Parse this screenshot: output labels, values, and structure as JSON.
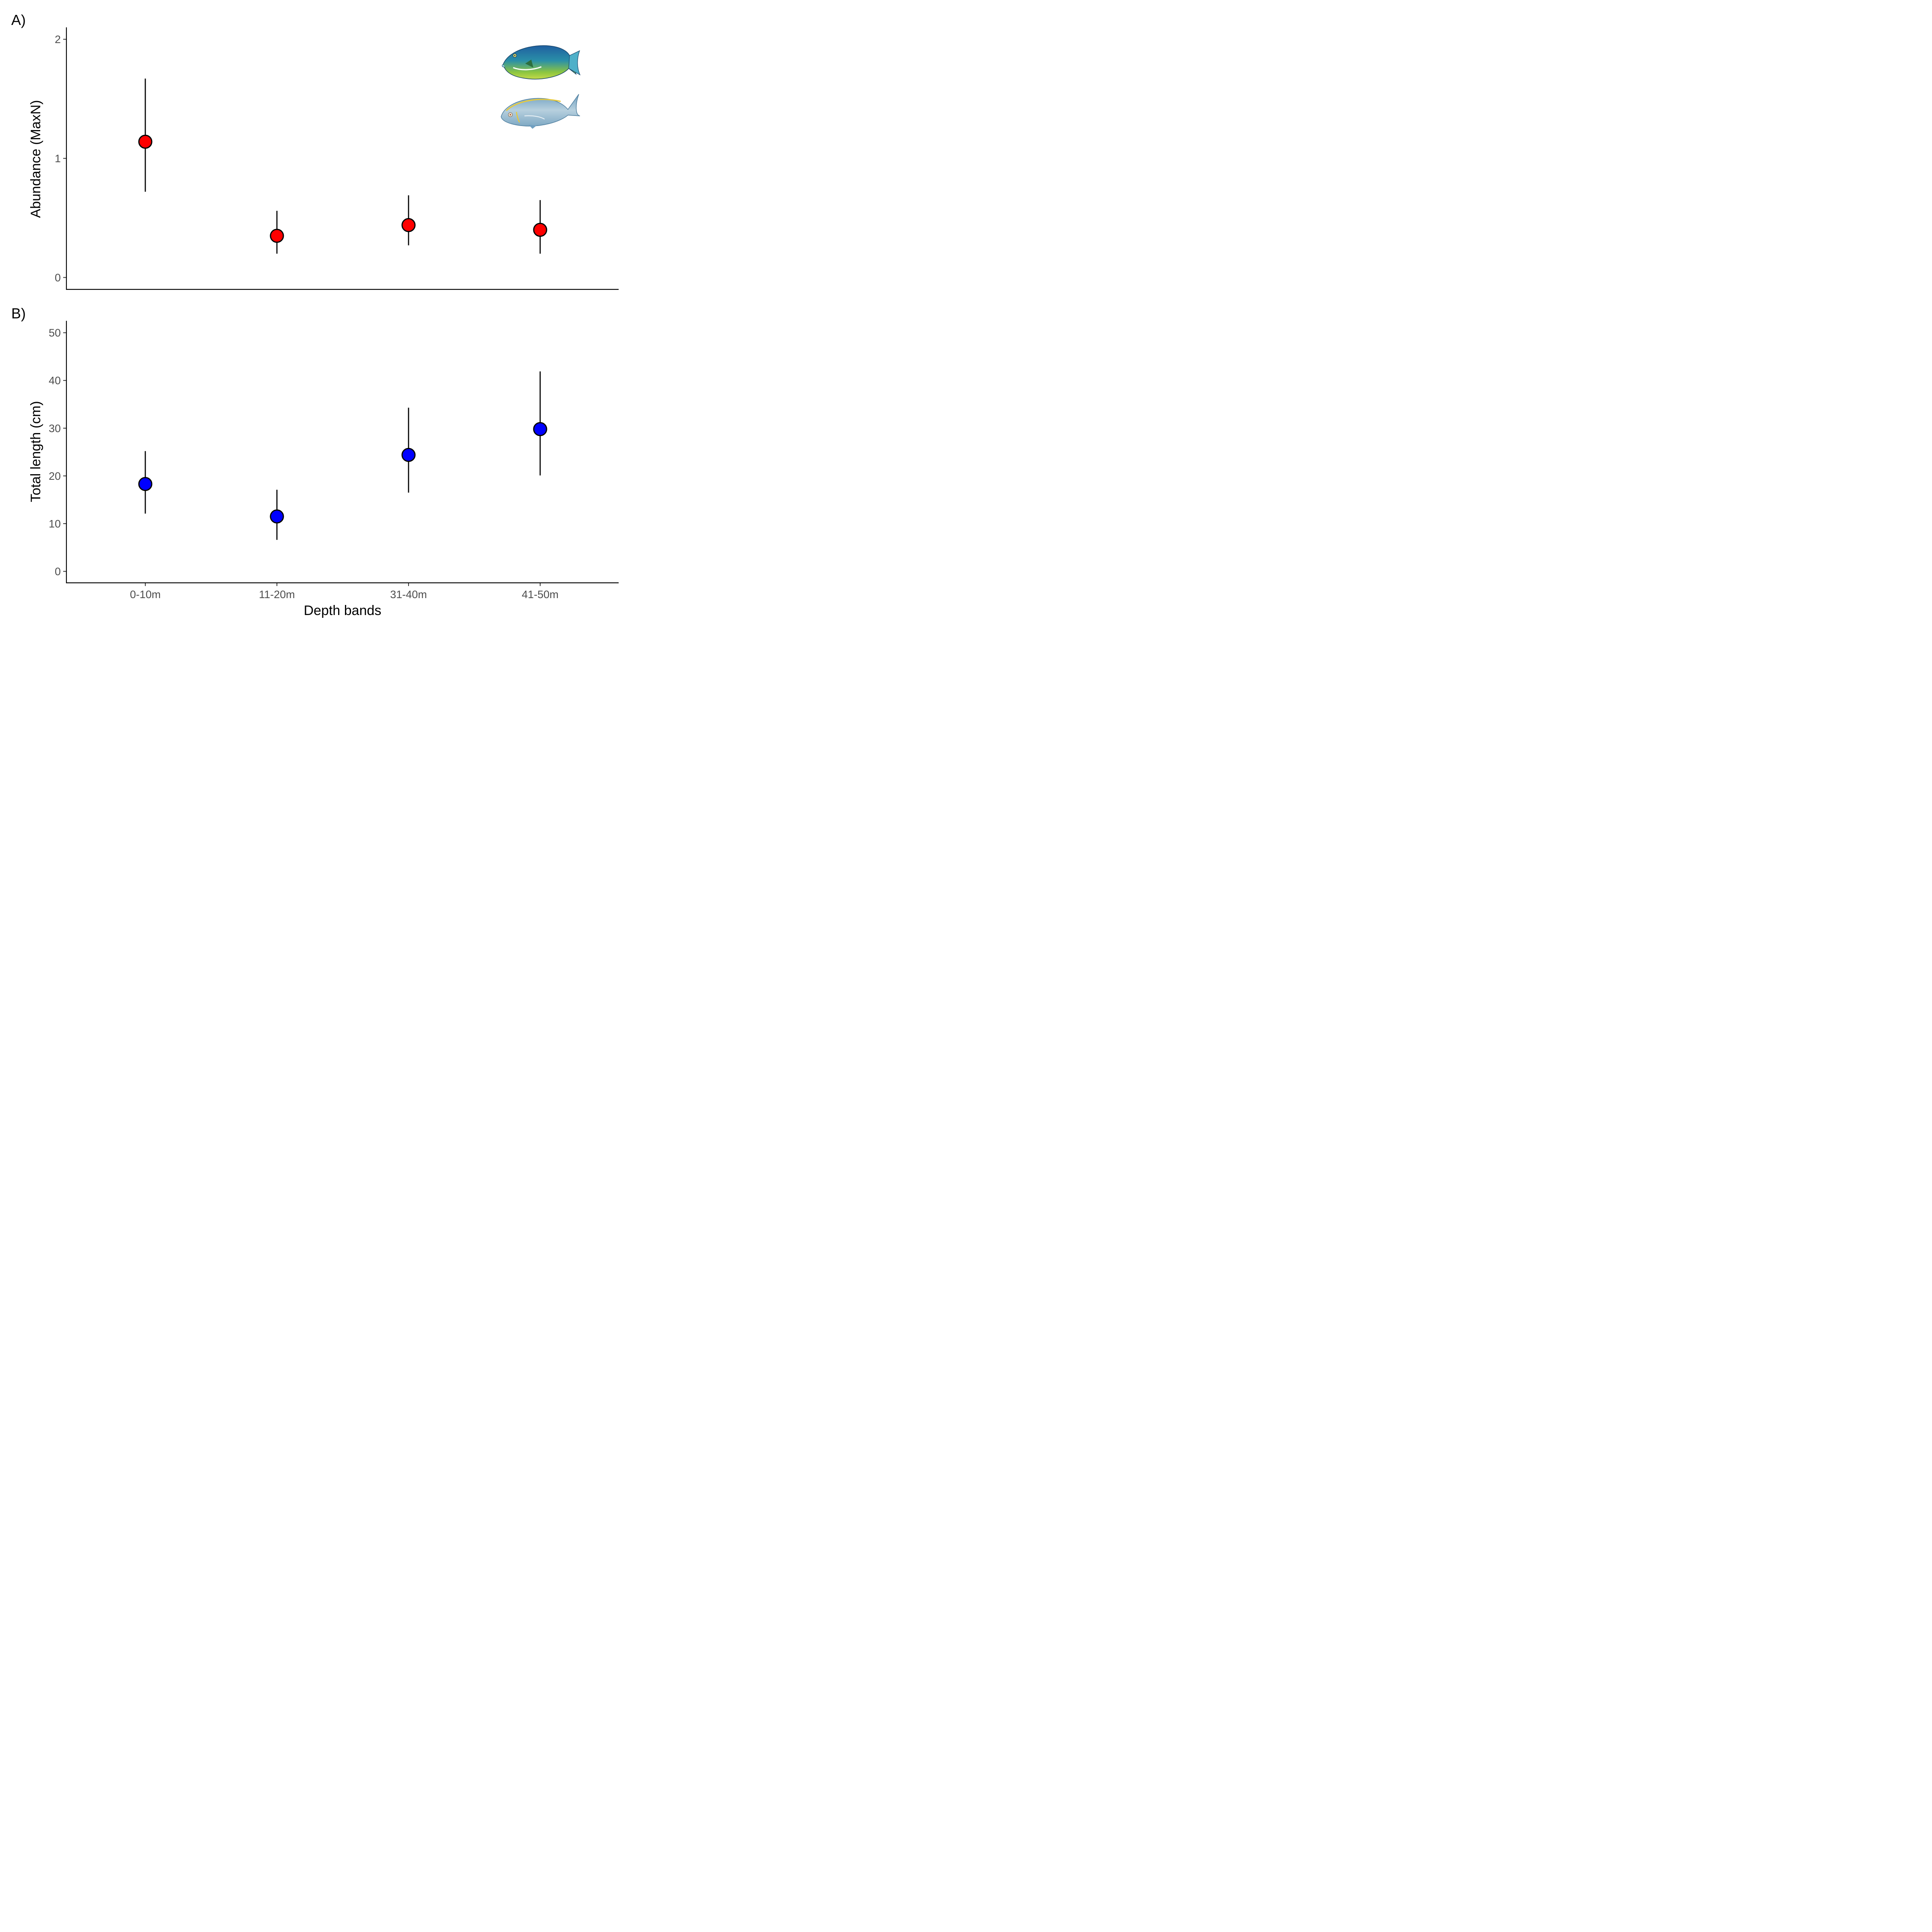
{
  "chart_data": [
    {
      "type": "scatter",
      "panel_label": "A)",
      "ylabel": "Abundance (MaxN)",
      "ylim": [
        -0.1,
        2.1
      ],
      "yticks": [
        0,
        1,
        2
      ],
      "categories": [
        "0-10m",
        "11-20m",
        "31-40m",
        "41-50m"
      ],
      "series": [
        {
          "values": [
            1.14,
            0.35,
            0.44,
            0.4
          ],
          "lower": [
            0.72,
            0.2,
            0.27,
            0.2
          ],
          "upper": [
            1.67,
            0.56,
            0.69,
            0.65
          ],
          "color": "#ff0000"
        }
      ],
      "images": [
        "parrotfish-icon",
        "rudderfish-icon"
      ],
      "grid": false
    },
    {
      "type": "scatter",
      "panel_label": "B)",
      "ylabel": "Total length (cm)",
      "xlabel": "Depth bands",
      "ylim": [
        -2.4,
        52.5
      ],
      "yticks": [
        0,
        10,
        20,
        30,
        40,
        50
      ],
      "categories": [
        "0-10m",
        "11-20m",
        "31-40m",
        "41-50m"
      ],
      "series": [
        {
          "values": [
            18.3,
            11.5,
            24.4,
            29.8
          ],
          "lower": [
            12.1,
            6.6,
            16.5,
            20.1
          ],
          "upper": [
            25.2,
            17.1,
            34.3,
            41.9
          ],
          "color": "#0000ff"
        }
      ],
      "grid": false
    }
  ]
}
